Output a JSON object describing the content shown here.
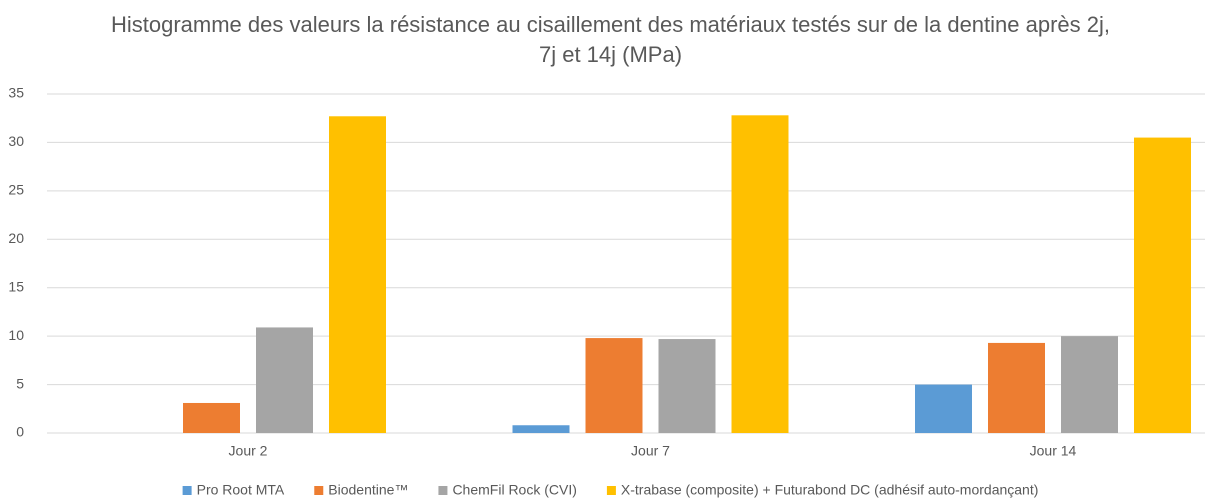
{
  "chart_data": {
    "type": "bar",
    "title": "Histogramme des valeurs la résistance au cisaillement des matériaux testés sur de la dentine après 2j, 7j et 14j (MPa)",
    "categories": [
      "Jour 2",
      "Jour 7",
      "Jour 14"
    ],
    "series": [
      {
        "name": "Pro Root MTA",
        "color": "#5b9bd5",
        "values": [
          0,
          0.8,
          5.0
        ]
      },
      {
        "name": "Biodentine™",
        "color": "#ed7d31",
        "values": [
          3.1,
          9.8,
          9.3
        ]
      },
      {
        "name": "ChemFil Rock (CVI)",
        "color": "#a5a5a5",
        "values": [
          10.9,
          9.7,
          10.0
        ]
      },
      {
        "name": "X-trabase (composite) + Futurabond DC (adhésif auto-mordançant)",
        "color": "#ffc000",
        "values": [
          32.7,
          32.8,
          30.5
        ]
      }
    ],
    "ylim": [
      0,
      35
    ],
    "yticks": [
      0,
      5,
      10,
      15,
      20,
      25,
      30,
      35
    ],
    "grid": true,
    "legend": "bottom"
  }
}
